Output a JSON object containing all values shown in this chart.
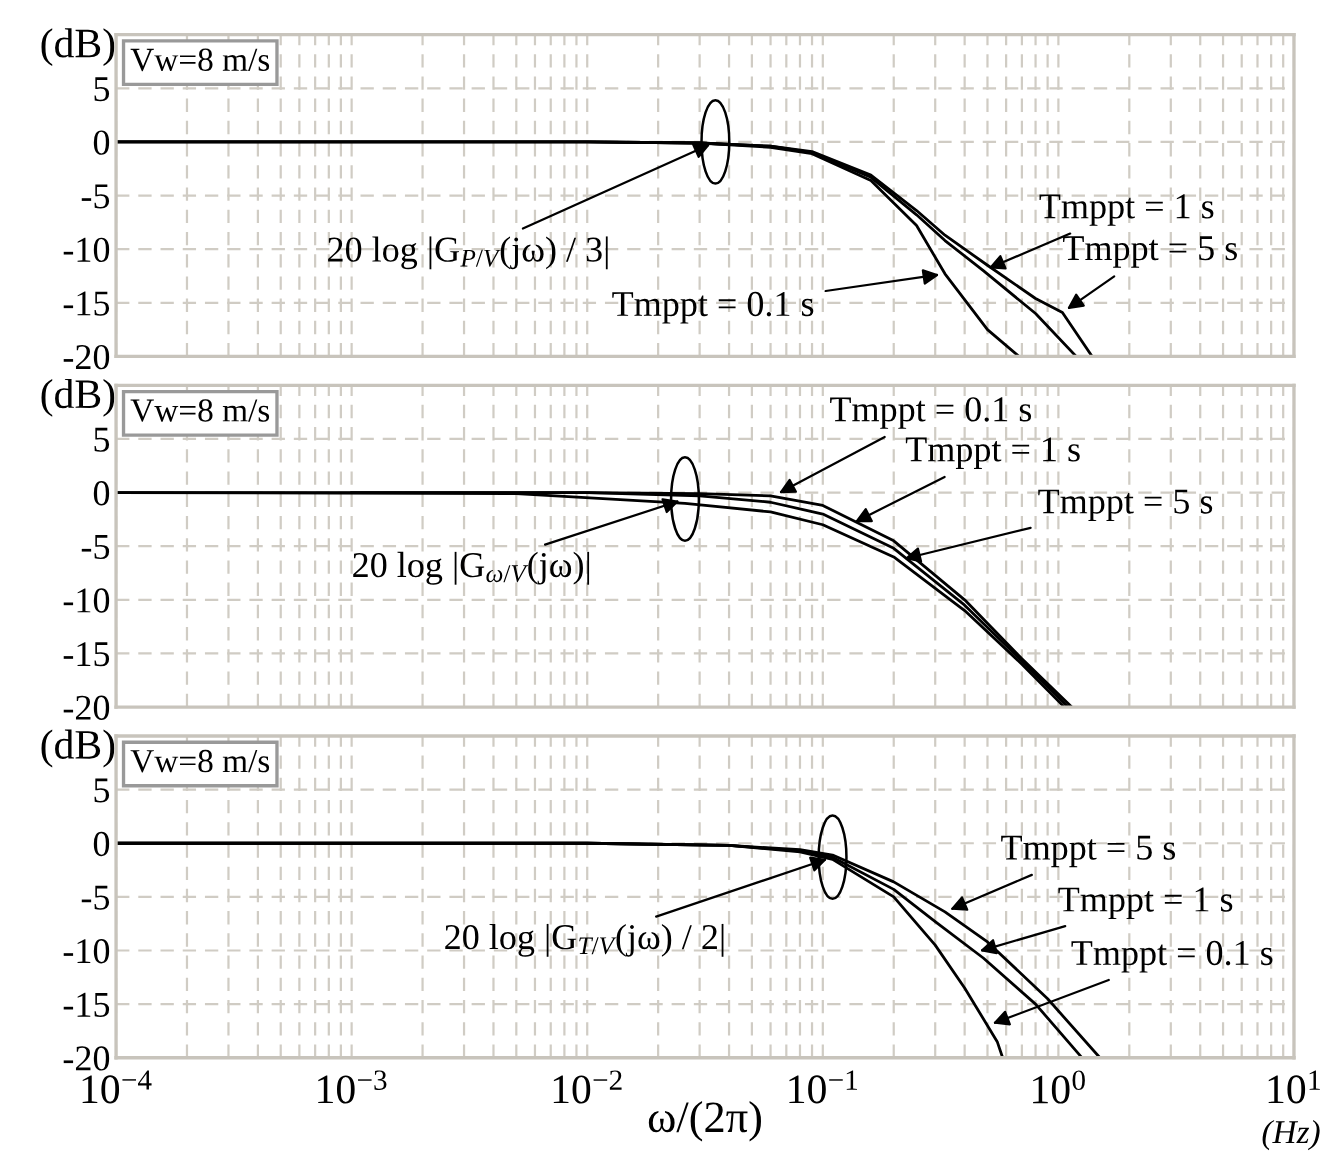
{
  "chart_data": [
    {
      "type": "line",
      "tick_labels": "y",
      "log": "x",
      "grid": true,
      "line_style": "solid",
      "marker": "none",
      "legend": false,
      "xlim": [
        0.0001,
        10
      ],
      "ylim": [
        -20,
        10
      ],
      "yticks": [
        -20,
        -15,
        -10,
        -5,
        0,
        5
      ],
      "ylabel": "(dB)",
      "series": [
        {
          "color": "#000000",
          "x": [
            0.0001,
            0.01,
            0.03,
            0.06,
            0.09,
            0.16,
            0.25,
            0.33,
            0.5,
            0.68
          ],
          "values": [
            0,
            0,
            -0.1,
            -0.5,
            -1.1,
            -3.6,
            -7.8,
            -12.3,
            -17.5,
            -20
          ]
        },
        {
          "color": "#000000",
          "x": [
            0.0001,
            0.01,
            0.03,
            0.06,
            0.09,
            0.16,
            0.25,
            0.33,
            0.48,
            0.8,
            1.19
          ],
          "values": [
            0,
            0,
            -0.1,
            -0.4,
            -1.0,
            -3.3,
            -6.8,
            -9.2,
            -12,
            -16,
            -20
          ]
        },
        {
          "color": "#000000",
          "x": [
            0.0001,
            0.01,
            0.03,
            0.06,
            0.09,
            0.16,
            0.25,
            0.33,
            0.5,
            0.8,
            1.04,
            1.39
          ],
          "values": [
            0,
            0,
            -0.1,
            -0.4,
            -0.9,
            -3.1,
            -6.4,
            -8.7,
            -11.5,
            -14.6,
            -15.9,
            -20
          ]
        }
      ],
      "annotations": [
        "Vw=8 m/s",
        {
          "text": "20 log |G$_{P/V}$(jω) / 3|",
          "x": 0.035,
          "y": 0
        },
        {
          "text": "Tmppt = 0.1 s",
          "x": 0.33,
          "y": -12.3
        },
        {
          "text": "Tmppt = 1 s",
          "x": 0.48,
          "y": -12
        },
        {
          "text": "Tmppt = 5 s",
          "x": 1.04,
          "y": -15.9
        }
      ]
    },
    {
      "type": "line",
      "tick_labels": "y",
      "log": "x",
      "grid": true,
      "line_style": "solid",
      "marker": "none",
      "legend": false,
      "xlim": [
        0.0001,
        10
      ],
      "ylim": [
        -20,
        10
      ],
      "yticks": [
        -20,
        -15,
        -10,
        -5,
        0,
        5
      ],
      "ylabel": "(dB)",
      "series": [
        {
          "color": "#000000",
          "x": [
            0.0001,
            0.01,
            0.03,
            0.06,
            0.1,
            0.2,
            0.4,
            0.7,
            1.14
          ],
          "values": [
            0,
            0,
            -0.1,
            -0.3,
            -1.2,
            -4.5,
            -10,
            -15.5,
            -20
          ]
        },
        {
          "color": "#000000",
          "x": [
            0.001,
            0.01,
            0.03,
            0.06,
            0.1,
            0.2,
            0.4,
            0.7,
            1.1
          ],
          "values": [
            0,
            0,
            -0.3,
            -0.9,
            -2.0,
            -5.2,
            -10.5,
            -15.7,
            -20
          ]
        },
        {
          "color": "#000000",
          "x": [
            0.0001,
            0.005,
            0.026,
            0.06,
            0.1,
            0.2,
            0.4,
            0.7,
            1.06
          ],
          "values": [
            0,
            -0.1,
            -1.0,
            -1.8,
            -3.0,
            -6.0,
            -11,
            -16,
            -20
          ]
        }
      ],
      "annotations": [
        "Vw=8 m/s",
        {
          "text": "20 log |G$_{ω/V}$(jω)|",
          "x": 0.026,
          "y": -0.6
        },
        {
          "text": "Tmppt = 0.1 s",
          "x": 0.062,
          "y": -0.3
        },
        {
          "text": "Tmppt = 1 s",
          "x": 0.13,
          "y": -3.0
        },
        {
          "text": "Tmppt = 5 s",
          "x": 0.21,
          "y": -6.3
        }
      ]
    },
    {
      "type": "line",
      "log": "x",
      "grid": true,
      "line_style": "solid",
      "marker": "none",
      "legend": false,
      "xlim": [
        0.0001,
        10
      ],
      "xticks": [
        {
          "value": 0.0001,
          "label": "10$^{−4}$"
        },
        {
          "value": 0.001,
          "label": "10$^{−3}$"
        },
        {
          "value": 0.01,
          "label": "10$^{−2}$"
        },
        {
          "value": 0.1,
          "label": "10$^{−1}$"
        },
        {
          "value": 1,
          "label": "10$^{0}$"
        },
        {
          "value": 10,
          "label": "10$^{1}$"
        }
      ],
      "ylim": [
        -20,
        10
      ],
      "yticks": [
        -20,
        -15,
        -10,
        -5,
        0,
        5
      ],
      "ylabel": "(dB)",
      "xlabel": "ω/(2π)",
      "series": [
        {
          "color": "#000000",
          "x": [
            0.0001,
            0.01,
            0.04,
            0.08,
            0.11,
            0.2,
            0.3,
            0.4,
            0.55,
            0.58
          ],
          "values": [
            0,
            0,
            -0.2,
            -0.8,
            -1.5,
            -5,
            -9.5,
            -13.5,
            -18.5,
            -20
          ]
        },
        {
          "color": "#000000",
          "x": [
            0.0001,
            0.01,
            0.04,
            0.08,
            0.11,
            0.2,
            0.3,
            0.48,
            0.8,
            1.26
          ],
          "values": [
            0,
            0,
            -0.2,
            -0.7,
            -1.3,
            -4.3,
            -7.3,
            -10.7,
            -15,
            -20
          ]
        },
        {
          "color": "#000000",
          "x": [
            0.0001,
            0.01,
            0.04,
            0.08,
            0.11,
            0.2,
            0.33,
            0.5,
            0.9,
            1.5
          ],
          "values": [
            0,
            0,
            -0.2,
            -0.6,
            -1.1,
            -3.6,
            -6.4,
            -9.2,
            -14.5,
            -20
          ]
        }
      ],
      "annotations": [
        "Vw=8 m/s",
        {
          "text": "20 log |G$_{T/V}$(jω) / 2|",
          "x": 0.11,
          "y": -1.3
        },
        {
          "text": "Tmppt = 0.1 s",
          "x": 0.5,
          "y": -17
        },
        {
          "text": "Tmppt = 1 s",
          "x": 0.44,
          "y": -10.2
        },
        {
          "text": "Tmppt = 5 s",
          "x": 0.33,
          "y": -6.4
        },
        "(Hz)"
      ]
    }
  ]
}
